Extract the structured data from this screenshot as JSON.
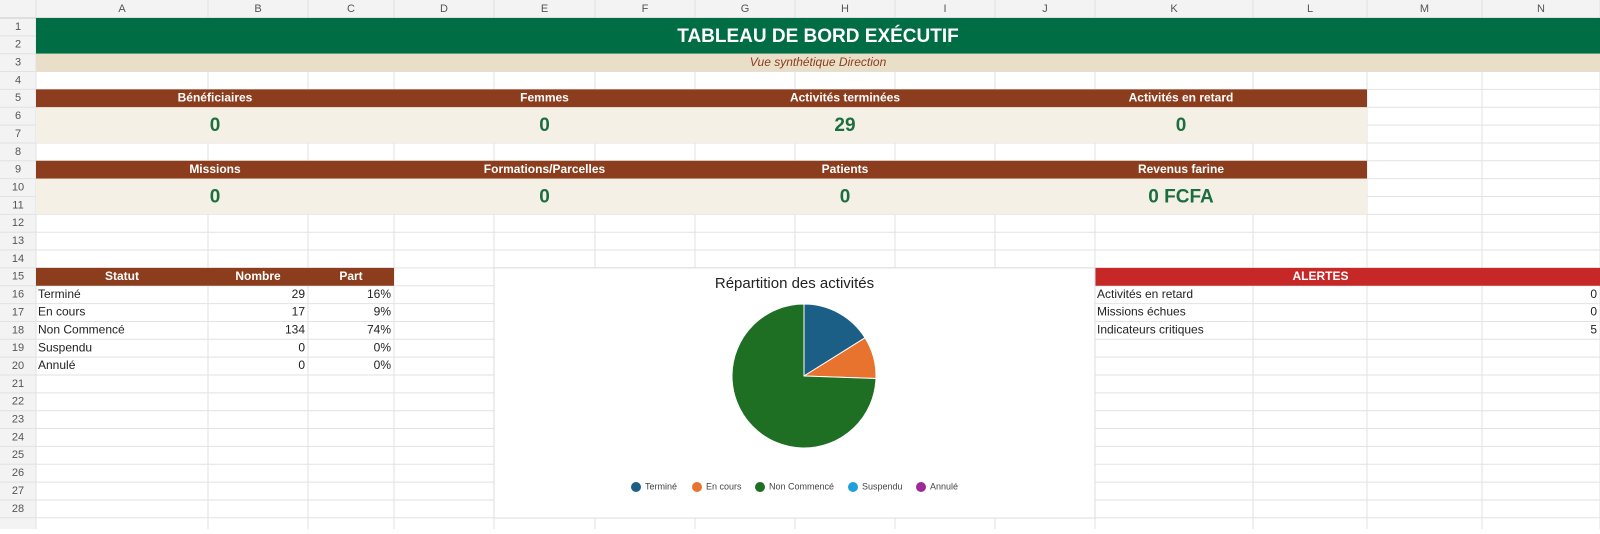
{
  "columns": [
    "A",
    "B",
    "C",
    "D",
    "E",
    "F",
    "G",
    "H",
    "I",
    "J",
    "K",
    "L",
    "M",
    "N"
  ],
  "row_numbers": [
    1,
    2,
    3,
    4,
    5,
    6,
    7,
    8,
    9,
    10,
    11,
    12,
    13,
    14,
    15,
    16,
    17,
    18,
    19,
    20,
    21,
    22,
    23,
    24,
    25,
    26,
    27,
    28
  ],
  "header": {
    "title": "TABLEAU DE BORD EXÉCUTIF",
    "subtitle": "Vue synthétique Direction"
  },
  "kpis": [
    [
      {
        "label": "Bénéficiaires",
        "value": 0
      },
      {
        "label": "Femmes",
        "value": 0
      },
      {
        "label": "Activités terminées",
        "value": 29
      },
      {
        "label": "Activités en retard",
        "value": 0
      }
    ],
    [
      {
        "label": "Missions",
        "value": 0
      },
      {
        "label": "Formations/Parcelles",
        "value": 0
      },
      {
        "label": "Patients",
        "value": 0
      },
      {
        "label": "Revenus farine",
        "value": "0 FCFA"
      }
    ]
  ],
  "table": {
    "header": [
      "Statut",
      "Nombre",
      "Part"
    ],
    "rows": [
      [
        "Terminé",
        29,
        "16%"
      ],
      [
        "En cours",
        17,
        "9%"
      ],
      [
        "Non Commencé",
        134,
        "74%"
      ],
      [
        "Suspendu",
        0,
        "0%"
      ],
      [
        "Annulé",
        0,
        "0%"
      ]
    ]
  },
  "alerts": {
    "title": "ALERTES",
    "rows": [
      [
        "Activités en retard",
        0
      ],
      [
        "Missions échues",
        0
      ],
      [
        "Indicateurs critiques",
        5
      ]
    ]
  },
  "chart_data": {
    "type": "pie",
    "title": "Répartition des activités",
    "categories": [
      "Terminé",
      "En cours",
      "Non Commencé",
      "Suspendu",
      "Annulé"
    ],
    "values": [
      29,
      17,
      134,
      0,
      0
    ],
    "colors": [
      "#1b5f87",
      "#e8732e",
      "#1e6e24",
      "#1fa0da",
      "#9b2a97"
    ]
  }
}
